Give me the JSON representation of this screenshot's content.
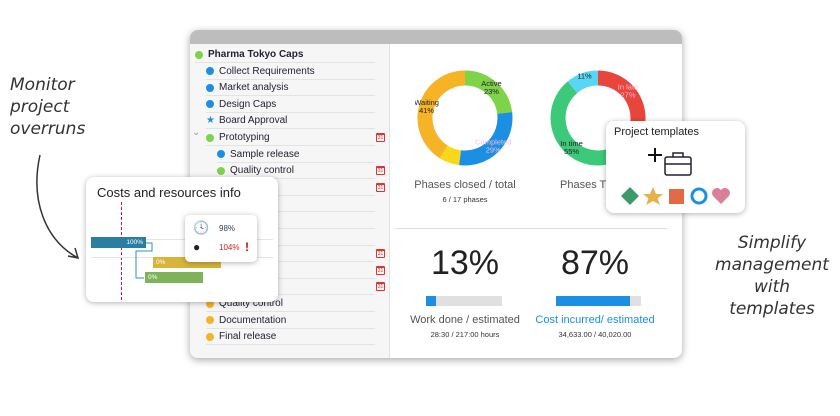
{
  "callouts": {
    "left": [
      "Monitor",
      "project",
      "overruns"
    ],
    "right": [
      "Simplify",
      "management",
      "with templates"
    ]
  },
  "tree": {
    "items": [
      {
        "label": "Pharma Tokyo Caps",
        "icon": "dot",
        "color": "#7ed348",
        "level": 0,
        "bold": true
      },
      {
        "label": "Collect Requirements",
        "icon": "dot",
        "color": "#1a8fe3",
        "level": 1
      },
      {
        "label": "Market analysis",
        "icon": "dot",
        "color": "#1a8fe3",
        "level": 1
      },
      {
        "label": "Design Caps",
        "icon": "dot",
        "color": "#1a8fe3",
        "level": 1
      },
      {
        "label": "Board Approval",
        "icon": "star",
        "color": "#1a8fe3",
        "level": 1
      },
      {
        "label": "Prototyping",
        "icon": "dot",
        "color": "#7ed348",
        "level": 1,
        "calendar": true,
        "expanded": true
      },
      {
        "label": "Sample release",
        "icon": "dot",
        "color": "#1a8fe3",
        "level": 2
      },
      {
        "label": "Quality control",
        "icon": "dot",
        "color": "#7ed348",
        "level": 2,
        "calendar": true
      },
      {
        "label": "oval",
        "level": 3,
        "calendar": true
      },
      {
        "label": "n",
        "level": 3
      },
      {
        "label": "ia",
        "level": 3
      },
      {
        "label": "ting",
        "level": 3
      },
      {
        "label": "",
        "level": 3,
        "calendar": true
      },
      {
        "label": "pplying",
        "level": 3,
        "calendar": true
      },
      {
        "label": "oduction",
        "level": 3,
        "calendar": true
      },
      {
        "label": "Quality control",
        "icon": "dot",
        "color": "#f5b325",
        "level": 1
      },
      {
        "label": "Documentation",
        "icon": "dot",
        "color": "#f5b325",
        "level": 1
      },
      {
        "label": "Final release",
        "icon": "dot",
        "color": "#f5b325",
        "level": 1
      }
    ]
  },
  "charts": [
    {
      "title": "Phases closed / total",
      "subtitle": "6 / 17 phases",
      "segments": [
        {
          "label": "Active",
          "value": 23,
          "color": "#7ed348"
        },
        {
          "label": "Completed",
          "value": 29,
          "color": "#1a8fe3"
        },
        {
          "label": "",
          "value": 7,
          "color": "#f9d71c"
        },
        {
          "label": "Waiting",
          "value": 41,
          "color": "#f5b325"
        }
      ]
    },
    {
      "title": "Phases T",
      "subtitle": "",
      "segments": [
        {
          "label": "In late",
          "value": 27,
          "color": "#e8453c"
        },
        {
          "label": "",
          "value": 7,
          "color": "#e8453c"
        },
        {
          "label": "In time",
          "value": 55,
          "color": "#3cc97a"
        },
        {
          "label": "",
          "value": 11,
          "color": "#5ad6f5"
        }
      ]
    }
  ],
  "kpis": [
    {
      "value": "13%",
      "progress": 13,
      "label": "Work done / estimated",
      "detail": "28:30 / 217:00 hours",
      "label_color": "#555"
    },
    {
      "value": "87%",
      "progress": 87,
      "label": "Cost incurred/ estimated",
      "detail": "34,633.00 / 40,020.00",
      "label_color": "#1a8fe3"
    }
  ],
  "costs_card": {
    "title": "Costs and resources info",
    "bars": [
      "100%",
      "0%",
      "0%"
    ],
    "time_pct": "98%",
    "cost_pct": "104%",
    "alert": "!"
  },
  "templates_card": {
    "title": "Project templates",
    "shapes": [
      "diamond",
      "star",
      "square",
      "ring",
      "heart"
    ]
  }
}
